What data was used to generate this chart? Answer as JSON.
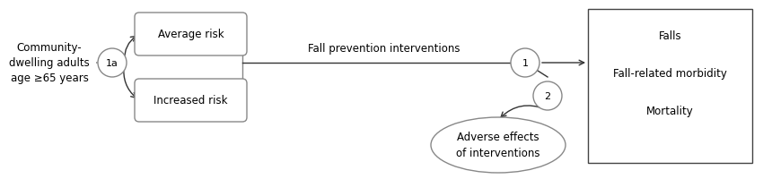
{
  "background_color": "#ffffff",
  "population_text": "Community-\ndwelling adults\nage ≥65 years",
  "avg_risk_text": "Average risk",
  "inc_risk_text": "Increased risk",
  "intervention_text": "Fall prevention interventions",
  "circle_1a_label": "1a",
  "circle_1_label": "1",
  "circle_2_label": "2",
  "outcomes_lines": [
    "Falls",
    "Fall-related morbidity",
    "Mortality"
  ],
  "adverse_text": "Adverse effects\nof interventions",
  "line_color": "#333333",
  "text_color": "#000000",
  "box_edge_color": "#888888",
  "fontsize_main": 8.5,
  "fontsize_circle": 8
}
